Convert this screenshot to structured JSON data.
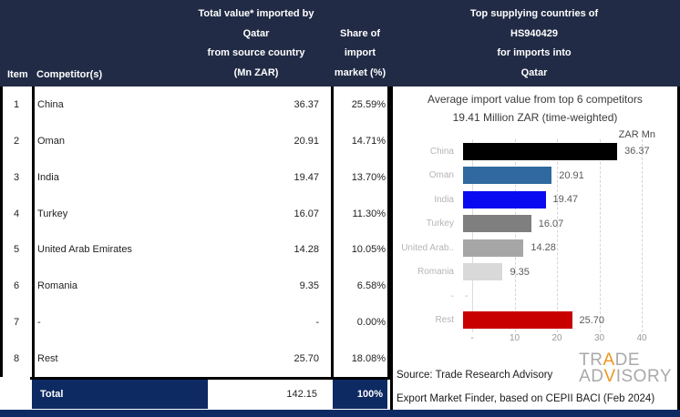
{
  "header": {
    "item_label": "Item",
    "competitor_label": "Competitor(s)",
    "value_col_lines": [
      "Total value* imported by",
      "Qatar",
      "from source country",
      "(Mn ZAR)"
    ],
    "share_col_lines": [
      "Share of",
      "import",
      "market (%)"
    ],
    "right_lines": [
      "Top supplying countries of",
      "HS940429",
      "for imports into",
      "Qatar"
    ]
  },
  "table": {
    "rows": [
      {
        "item": "1",
        "competitor": "China",
        "value": "36.37",
        "share": "25.59%"
      },
      {
        "item": "2",
        "competitor": "Oman",
        "value": "20.91",
        "share": "14.71%"
      },
      {
        "item": "3",
        "competitor": "India",
        "value": "19.47",
        "share": "13.70%"
      },
      {
        "item": "4",
        "competitor": "Turkey",
        "value": "16.07",
        "share": "11.30%"
      },
      {
        "item": "5",
        "competitor": "United Arab Emirates",
        "value": "14.28",
        "share": "10.05%"
      },
      {
        "item": "6",
        "competitor": "Romania",
        "value": "9.35",
        "share": "6.58%"
      },
      {
        "item": "7",
        "competitor": "-",
        "value": "-",
        "share": "0.00%"
      },
      {
        "item": "8",
        "competitor": "Rest",
        "value": "25.70",
        "share": "18.08%"
      }
    ],
    "total": {
      "label": "Total",
      "value": "142.15",
      "share": "100%"
    }
  },
  "chart": {
    "title_line1": "Average import value from top 6 competitors",
    "title_line2": "19.41 Million ZAR (time-weighted)",
    "unit_label": "ZAR Mn"
  },
  "chart_data": {
    "type": "bar",
    "orientation": "horizontal",
    "title": "Average import value from top 6 competitors",
    "subtitle": "19.41 Million ZAR (time-weighted)",
    "unit": "ZAR Mn",
    "categories": [
      "China",
      "Oman",
      "India",
      "Turkey",
      "United Arab..",
      "Romania",
      "-",
      "Rest"
    ],
    "values": [
      36.37,
      20.91,
      19.47,
      16.07,
      14.28,
      9.35,
      null,
      25.7
    ],
    "value_labels": [
      "36.37",
      "20.91",
      "19.47",
      "16.07",
      "14.28",
      "9.35",
      "-",
      "25.70"
    ],
    "bar_colors": [
      "#000000",
      "#30699f",
      "#0a0af0",
      "#7f7f7f",
      "#a6a6a6",
      "#d9d9d9",
      null,
      "#c80000"
    ],
    "xlim": [
      0,
      40
    ],
    "x_ticks": [
      "-",
      "10",
      "20",
      "30",
      "40"
    ],
    "x_tick_values": [
      0,
      10,
      20,
      30,
      40
    ],
    "grid": "dashed-vertical",
    "legend": "none"
  },
  "footer": {
    "source_line1": "Source: Trade Research Advisory",
    "source_line2": "Export Market Finder, based on CEPII BACI (Feb 2024)",
    "logo": {
      "line1_pre": "TR",
      "line1_accent": "A",
      "line1_post": "DE",
      "line2_pre": "AD",
      "line2_accent": "V",
      "line2_post": "ISORY",
      "gray": "#a9a9a9",
      "orange": "#f0941e"
    }
  },
  "colors": {
    "header_navy": "#212b45",
    "total_navy": "#0e2a63",
    "border_black": "#000000",
    "rest_red": "#c80000",
    "india_blue": "#0a0af0",
    "oman_blue": "#30699f"
  }
}
